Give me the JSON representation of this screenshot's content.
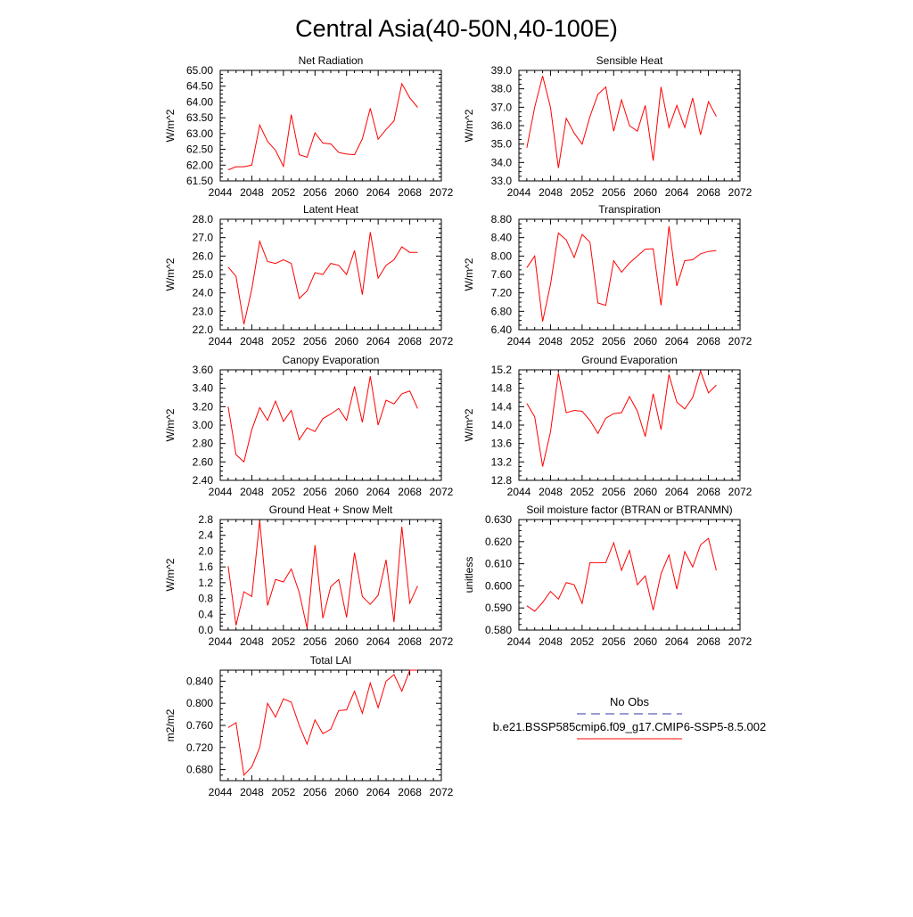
{
  "title": "Central Asia(40-50N,40-100E)",
  "chart_data": [
    {
      "type": "line",
      "title": "Net Radiation",
      "ylabel": "W/m^2",
      "xlim": [
        2044,
        2072
      ],
      "ylim": [
        61.5,
        65.0
      ],
      "xticks": [
        "2044",
        "2048",
        "2052",
        "2056",
        "2060",
        "2064",
        "2068",
        "2072"
      ],
      "yticks": [
        "61.50",
        "62.00",
        "62.50",
        "63.00",
        "63.50",
        "64.00",
        "64.50",
        "65.00"
      ],
      "x": [
        2045,
        2046,
        2047,
        2048,
        2049,
        2050,
        2051,
        2052,
        2053,
        2054,
        2055,
        2056,
        2057,
        2058,
        2059,
        2060,
        2061,
        2062,
        2063,
        2064,
        2065,
        2066,
        2067,
        2068,
        2069
      ],
      "series": [
        {
          "color": "#ff0000",
          "values": [
            61.85,
            61.95,
            61.95,
            62.0,
            63.27,
            62.75,
            62.47,
            61.96,
            63.6,
            62.33,
            62.25,
            63.02,
            62.7,
            62.67,
            62.4,
            62.35,
            62.33,
            62.83,
            63.8,
            62.82,
            63.13,
            63.4,
            64.58,
            64.13,
            63.83
          ]
        }
      ]
    },
    {
      "type": "line",
      "title": "Sensible Heat",
      "ylabel": "W/m^2",
      "xlim": [
        2044,
        2072
      ],
      "ylim": [
        33.0,
        39.0
      ],
      "xticks": [
        "2044",
        "2048",
        "2052",
        "2056",
        "2060",
        "2064",
        "2068",
        "2072"
      ],
      "yticks": [
        "33.0",
        "34.0",
        "35.0",
        "36.0",
        "37.0",
        "38.0",
        "39.0"
      ],
      "x": [
        2045,
        2046,
        2047,
        2048,
        2049,
        2050,
        2051,
        2052,
        2053,
        2054,
        2055,
        2056,
        2057,
        2058,
        2059,
        2060,
        2061,
        2062,
        2063,
        2064,
        2065,
        2066,
        2067,
        2068,
        2069
      ],
      "series": [
        {
          "color": "#ff0000",
          "values": [
            34.8,
            37.0,
            38.7,
            37.0,
            33.7,
            36.4,
            35.6,
            35.0,
            36.5,
            37.7,
            38.1,
            35.7,
            37.4,
            36.0,
            35.7,
            37.1,
            34.1,
            38.1,
            35.9,
            37.1,
            35.9,
            37.5,
            35.5,
            37.3,
            36.5
          ]
        }
      ]
    },
    {
      "type": "line",
      "title": "Latent Heat",
      "ylabel": "W/m^2",
      "xlim": [
        2044,
        2072
      ],
      "ylim": [
        22.0,
        28.0
      ],
      "xticks": [
        "2044",
        "2048",
        "2052",
        "2056",
        "2060",
        "2064",
        "2068",
        "2072"
      ],
      "yticks": [
        "22.0",
        "23.0",
        "24.0",
        "25.0",
        "26.0",
        "27.0",
        "28.0"
      ],
      "x": [
        2045,
        2046,
        2047,
        2048,
        2049,
        2050,
        2051,
        2052,
        2053,
        2054,
        2055,
        2056,
        2057,
        2058,
        2059,
        2060,
        2061,
        2062,
        2063,
        2064,
        2065,
        2066,
        2067,
        2068,
        2069
      ],
      "series": [
        {
          "color": "#ff0000",
          "values": [
            25.4,
            24.9,
            22.3,
            24.2,
            26.8,
            25.7,
            25.6,
            25.8,
            25.6,
            23.7,
            24.1,
            25.1,
            25.0,
            25.6,
            25.5,
            25.0,
            26.3,
            23.9,
            27.3,
            24.8,
            25.5,
            25.8,
            26.5,
            26.2,
            26.2
          ]
        }
      ]
    },
    {
      "type": "line",
      "title": "Transpiration",
      "ylabel": "W/m^2",
      "xlim": [
        2044,
        2072
      ],
      "ylim": [
        6.4,
        8.8
      ],
      "xticks": [
        "2044",
        "2048",
        "2052",
        "2056",
        "2060",
        "2064",
        "2068",
        "2072"
      ],
      "yticks": [
        "6.40",
        "6.80",
        "7.20",
        "7.60",
        "8.00",
        "8.40",
        "8.80"
      ],
      "x": [
        2045,
        2046,
        2047,
        2048,
        2049,
        2050,
        2051,
        2052,
        2053,
        2054,
        2055,
        2056,
        2057,
        2058,
        2059,
        2060,
        2061,
        2062,
        2063,
        2064,
        2065,
        2066,
        2067,
        2068,
        2069
      ],
      "series": [
        {
          "color": "#ff0000",
          "values": [
            7.75,
            8.0,
            6.58,
            7.38,
            8.5,
            8.35,
            7.97,
            8.47,
            8.3,
            6.98,
            6.93,
            7.9,
            7.65,
            7.85,
            8.0,
            8.15,
            8.16,
            6.93,
            8.65,
            7.35,
            7.9,
            7.92,
            8.05,
            8.1,
            8.12
          ]
        }
      ]
    },
    {
      "type": "line",
      "title": "Canopy Evaporation",
      "ylabel": "W/m^2",
      "xlim": [
        2044,
        2072
      ],
      "ylim": [
        2.4,
        3.6
      ],
      "xticks": [
        "2044",
        "2048",
        "2052",
        "2056",
        "2060",
        "2064",
        "2068",
        "2072"
      ],
      "yticks": [
        "2.40",
        "2.60",
        "2.80",
        "3.00",
        "3.20",
        "3.40",
        "3.60"
      ],
      "x": [
        2045,
        2046,
        2047,
        2048,
        2049,
        2050,
        2051,
        2052,
        2053,
        2054,
        2055,
        2056,
        2057,
        2058,
        2059,
        2060,
        2061,
        2062,
        2063,
        2064,
        2065,
        2066,
        2067,
        2068,
        2069
      ],
      "series": [
        {
          "color": "#ff0000",
          "values": [
            3.2,
            2.68,
            2.6,
            2.95,
            3.19,
            3.05,
            3.26,
            3.04,
            3.16,
            2.84,
            2.97,
            2.93,
            3.07,
            3.12,
            3.18,
            3.05,
            3.42,
            3.03,
            3.53,
            3.0,
            3.27,
            3.23,
            3.34,
            3.37,
            3.18
          ]
        }
      ]
    },
    {
      "type": "line",
      "title": "Ground Evaporation",
      "ylabel": "W/m^2",
      "xlim": [
        2044,
        2072
      ],
      "ylim": [
        12.8,
        15.2
      ],
      "xticks": [
        "2044",
        "2048",
        "2052",
        "2056",
        "2060",
        "2064",
        "2068",
        "2072"
      ],
      "yticks": [
        "12.8",
        "13.2",
        "13.6",
        "14.0",
        "14.4",
        "14.8",
        "15.2"
      ],
      "x": [
        2045,
        2046,
        2047,
        2048,
        2049,
        2050,
        2051,
        2052,
        2053,
        2054,
        2055,
        2056,
        2057,
        2058,
        2059,
        2060,
        2061,
        2062,
        2063,
        2064,
        2065,
        2066,
        2067,
        2068,
        2069
      ],
      "series": [
        {
          "color": "#ff0000",
          "values": [
            14.47,
            14.18,
            13.1,
            13.85,
            15.13,
            14.27,
            14.32,
            14.3,
            14.1,
            13.82,
            14.15,
            14.25,
            14.27,
            14.62,
            14.3,
            13.75,
            14.68,
            13.9,
            15.1,
            14.5,
            14.35,
            14.6,
            15.17,
            14.7,
            14.87
          ]
        }
      ]
    },
    {
      "type": "line",
      "title": "Ground Heat + Snow Melt",
      "ylabel": "W/m^2",
      "xlim": [
        2044,
        2072
      ],
      "ylim": [
        0.0,
        2.8
      ],
      "xticks": [
        "2044",
        "2048",
        "2052",
        "2056",
        "2060",
        "2064",
        "2068",
        "2072"
      ],
      "yticks": [
        "0.0",
        "0.4",
        "0.8",
        "1.2",
        "1.6",
        "2.0",
        "2.4",
        "2.8"
      ],
      "x": [
        2045,
        2046,
        2047,
        2048,
        2049,
        2050,
        2051,
        2052,
        2053,
        2054,
        2055,
        2056,
        2057,
        2058,
        2059,
        2060,
        2061,
        2062,
        2063,
        2064,
        2065,
        2066,
        2067,
        2068,
        2069
      ],
      "series": [
        {
          "color": "#ff0000",
          "values": [
            1.62,
            0.12,
            0.97,
            0.85,
            2.77,
            0.62,
            1.28,
            1.22,
            1.55,
            0.95,
            0.05,
            2.15,
            0.3,
            1.1,
            1.28,
            0.32,
            1.96,
            0.85,
            0.65,
            0.88,
            1.78,
            0.2,
            2.62,
            0.68,
            1.12
          ]
        }
      ]
    },
    {
      "type": "line",
      "title": "Soil moisture factor (BTRAN or BTRANMN)",
      "ylabel": "unitless",
      "xlim": [
        2044,
        2072
      ],
      "ylim": [
        0.58,
        0.63
      ],
      "xticks": [
        "2044",
        "2048",
        "2052",
        "2056",
        "2060",
        "2064",
        "2068",
        "2072"
      ],
      "yticks": [
        "0.580",
        "0.590",
        "0.600",
        "0.610",
        "0.620",
        "0.630"
      ],
      "x": [
        2045,
        2046,
        2047,
        2048,
        2049,
        2050,
        2051,
        2052,
        2053,
        2054,
        2055,
        2056,
        2057,
        2058,
        2059,
        2060,
        2061,
        2062,
        2063,
        2064,
        2065,
        2066,
        2067,
        2068,
        2069
      ],
      "series": [
        {
          "color": "#ff0000",
          "values": [
            0.591,
            0.5885,
            0.5925,
            0.5975,
            0.594,
            0.6015,
            0.6005,
            0.592,
            0.6105,
            0.6105,
            0.6105,
            0.6195,
            0.607,
            0.616,
            0.6005,
            0.6045,
            0.589,
            0.6055,
            0.614,
            0.5985,
            0.6155,
            0.6085,
            0.6185,
            0.6215,
            0.607
          ]
        }
      ]
    },
    {
      "type": "line",
      "title": "Total LAI",
      "ylabel": "m2/m2",
      "xlim": [
        2044,
        2072
      ],
      "ylim": [
        0.66,
        0.86
      ],
      "xticks": [
        "2044",
        "2048",
        "2052",
        "2056",
        "2060",
        "2064",
        "2068",
        "2072"
      ],
      "yticks": [
        "0.680",
        "0.720",
        "0.760",
        "0.800",
        "0.840"
      ],
      "ytick_values": [
        0.68,
        0.72,
        0.76,
        0.8,
        0.84
      ],
      "x": [
        2045,
        2046,
        2047,
        2048,
        2049,
        2050,
        2051,
        2052,
        2053,
        2054,
        2055,
        2056,
        2057,
        2058,
        2059,
        2060,
        2061,
        2062,
        2063,
        2064,
        2065,
        2066,
        2067,
        2068,
        2069
      ],
      "series": [
        {
          "color": "#ff0000",
          "values": [
            0.756,
            0.765,
            0.67,
            0.685,
            0.72,
            0.8,
            0.775,
            0.808,
            0.802,
            0.76,
            0.726,
            0.77,
            0.745,
            0.753,
            0.787,
            0.788,
            0.822,
            0.782,
            0.837,
            0.792,
            0.84,
            0.852,
            0.822,
            0.86,
            0.86
          ]
        }
      ]
    }
  ],
  "legend": {
    "items": [
      {
        "label": "No Obs",
        "color": "#3333aa",
        "dash": "dashed"
      },
      {
        "label": "b.e21.BSSP585cmip6.f09_g17.CMIP6-SSP5-8.5.002",
        "color": "#ff0000",
        "dash": "solid"
      }
    ]
  }
}
